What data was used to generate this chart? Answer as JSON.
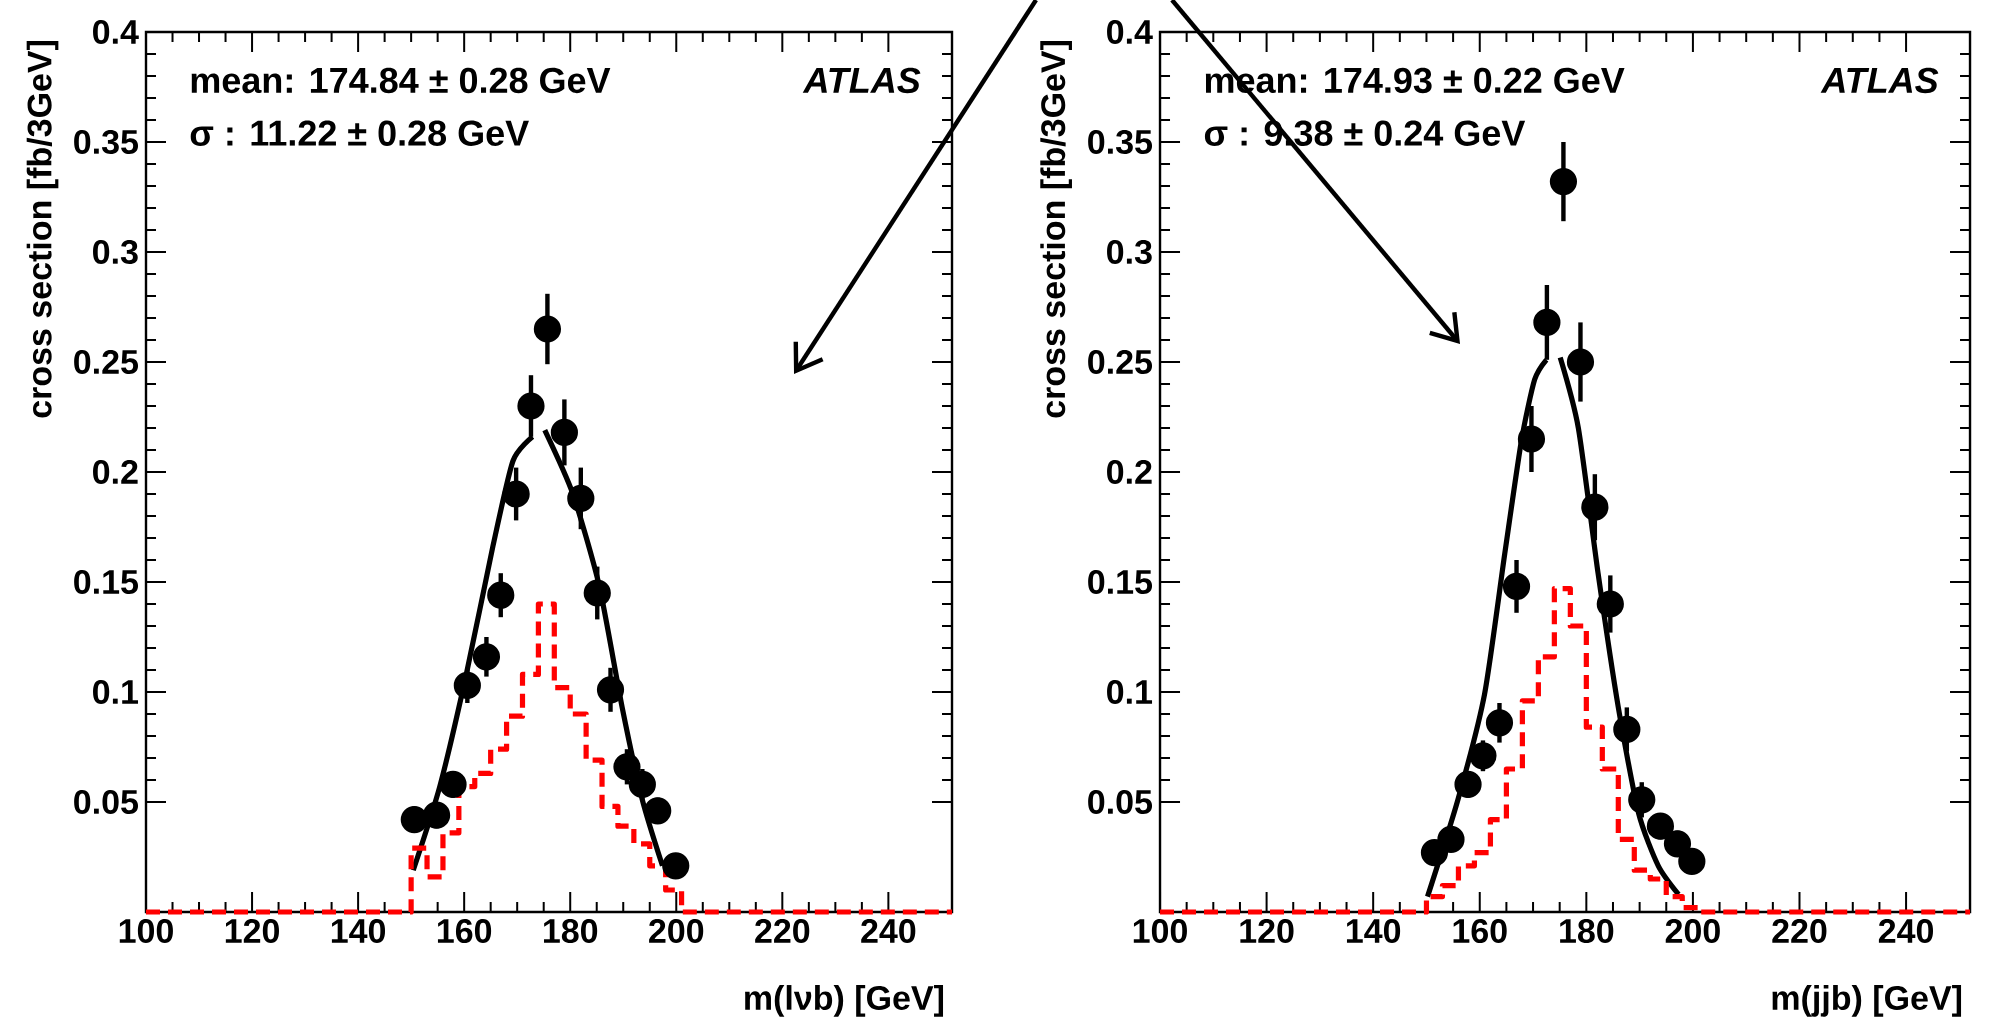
{
  "chart_data": [
    {
      "type": "scatter",
      "xlabel": "m(lνb) [GeV]",
      "ylabel": "cross section [fb/3GeV]",
      "xlim": [
        100,
        252
      ],
      "ylim": [
        0,
        0.4
      ],
      "xticks": [
        100,
        120,
        140,
        160,
        180,
        200,
        220,
        240
      ],
      "yticks": [
        0.05,
        0.1,
        0.15,
        0.2,
        0.25,
        0.3,
        0.35,
        0.4
      ],
      "annotations": [
        "mean: 174.84 ± 0.28 GeV",
        "σ : 11.22 ± 0.28 GeV",
        "ATLAS"
      ],
      "series": [
        {
          "marker": "circle",
          "color": "#000000",
          "x": [
            150.6,
            154.8,
            157.9,
            160.6,
            164.2,
            166.9,
            169.8,
            172.6,
            175.7,
            178.9,
            182.0,
            185.1,
            187.6,
            190.7,
            193.6,
            196.5,
            199.9
          ],
          "values": [
            0.042,
            0.044,
            0.058,
            0.103,
            0.116,
            0.144,
            0.19,
            0.23,
            0.265,
            0.218,
            0.188,
            0.145,
            0.101,
            0.066,
            0.058,
            0.046,
            0.021
          ],
          "errors": [
            0.006,
            0.006,
            0.006,
            0.008,
            0.009,
            0.01,
            0.012,
            0.014,
            0.016,
            0.015,
            0.014,
            0.012,
            0.01,
            0.008,
            0.007,
            0.006,
            0.005
          ]
        },
        {
          "type": "line",
          "marker": "none",
          "line_style": "solid",
          "color": "#000000",
          "x": [
            150.4,
            155.4,
            160.4,
            165.4,
            169.2,
            172.9,
            174.0,
            175.2,
            180.5,
            185.5,
            189.8,
            193.6,
            197.4
          ],
          "values": [
            0.019,
            0.057,
            0.108,
            0.166,
            0.205,
            0.216,
            null,
            0.219,
            0.19,
            0.148,
            0.093,
            0.051,
            0.021
          ]
        },
        {
          "type": "step",
          "marker": "none",
          "line_style": "dashed",
          "color": "#ff0000",
          "x": [
            100,
            150,
            153,
            156,
            159,
            162,
            165,
            168,
            171,
            174,
            177,
            180,
            183,
            186,
            189,
            192,
            195,
            198,
            201,
            252
          ],
          "values": [
            0,
            0.029,
            0.016,
            0.036,
            0.057,
            0.063,
            0.074,
            0.089,
            0.108,
            0.14,
            0.102,
            0.09,
            0.069,
            0.048,
            0.039,
            0.031,
            0.021,
            0.01,
            0,
            0
          ]
        }
      ]
    },
    {
      "type": "scatter",
      "xlabel": "m(jjb) [GeV]",
      "ylabel": "cross section [fb/3GeV]",
      "xlim": [
        100,
        252
      ],
      "ylim": [
        0,
        0.4
      ],
      "xticks": [
        100,
        120,
        140,
        160,
        180,
        200,
        220,
        240
      ],
      "yticks": [
        0.05,
        0.1,
        0.15,
        0.2,
        0.25,
        0.3,
        0.35,
        0.4
      ],
      "annotations": [
        "mean: 174.93 ± 0.22 GeV",
        "σ : 9.38 ± 0.24 GeV",
        "ATLAS"
      ],
      "series": [
        {
          "marker": "circle",
          "color": "#000000",
          "x": [
            151.5,
            154.6,
            157.8,
            160.6,
            163.7,
            166.9,
            169.7,
            172.6,
            175.7,
            178.9,
            181.6,
            184.5,
            187.6,
            190.4,
            193.9,
            197.1,
            199.8
          ],
          "values": [
            0.027,
            0.033,
            0.058,
            0.071,
            0.086,
            0.148,
            0.215,
            0.268,
            0.332,
            0.25,
            0.184,
            0.14,
            0.083,
            0.051,
            0.039,
            0.031,
            0.023
          ],
          "errors": [
            0.005,
            0.005,
            0.006,
            0.007,
            0.009,
            0.012,
            0.015,
            0.017,
            0.018,
            0.018,
            0.015,
            0.013,
            0.01,
            0.008,
            0.006,
            0.006,
            0.005
          ]
        },
        {
          "type": "line",
          "marker": "none",
          "line_style": "solid",
          "color": "#000000",
          "x": [
            150.2,
            155.9,
            160.9,
            164.7,
            167.8,
            170.3,
            172.5,
            173.8,
            175.1,
            178.5,
            182.2,
            186.0,
            189.8,
            193.5,
            197.3
          ],
          "values": [
            0.007,
            0.051,
            0.099,
            0.163,
            0.214,
            0.242,
            0.251,
            null,
            0.252,
            0.22,
            0.154,
            0.093,
            0.045,
            0.021,
            0.008
          ]
        },
        {
          "type": "step",
          "marker": "none",
          "line_style": "dashed",
          "color": "#ff0000",
          "x": [
            100,
            150,
            153,
            156,
            159,
            162,
            165,
            168,
            171,
            174,
            177,
            180,
            183,
            186,
            189,
            192,
            195,
            198,
            201,
            252
          ],
          "values": [
            0,
            0.007,
            0.012,
            0.021,
            0.027,
            0.042,
            0.065,
            0.096,
            0.116,
            0.147,
            0.13,
            0.084,
            0.065,
            0.033,
            0.019,
            0.015,
            0.007,
            0.002,
            0,
            0
          ]
        }
      ]
    }
  ]
}
